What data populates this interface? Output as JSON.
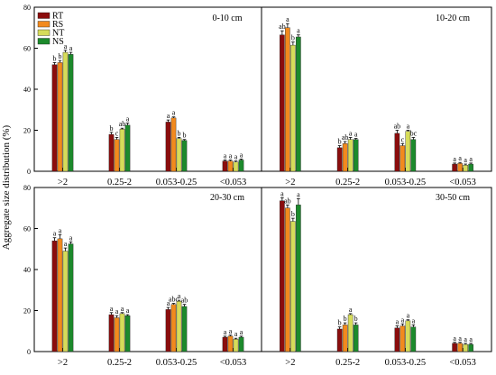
{
  "figure": {
    "ylabel": "Aggregate size distribution (%)"
  },
  "legend": {
    "entries": [
      {
        "name": "RT",
        "color": "#8b0d0d"
      },
      {
        "name": "RS",
        "color": "#f28a1e"
      },
      {
        "name": "NT",
        "color": "#d6dc5a"
      },
      {
        "name": "NS",
        "color": "#1c8a2c"
      }
    ]
  },
  "chart_data": [
    {
      "type": "bar",
      "title": "0-10 cm",
      "categories": [
        ">2",
        "0.25-2",
        "0.053-0.25",
        "<0.053"
      ],
      "ylim": [
        0,
        80
      ],
      "yticks": [
        0,
        20,
        40,
        60,
        80
      ],
      "series": [
        {
          "name": "RT",
          "values": [
            52,
            18,
            24,
            5
          ],
          "errors": [
            1,
            1,
            1,
            0.5
          ],
          "letters": [
            "b",
            "b",
            "a",
            "a"
          ]
        },
        {
          "name": "RS",
          "values": [
            53,
            15.5,
            26,
            5
          ],
          "errors": [
            1,
            1,
            0.5,
            0.5
          ],
          "letters": [
            "b",
            "c",
            "a",
            "a"
          ]
        },
        {
          "name": "NT",
          "values": [
            58,
            20.5,
            16,
            4.5
          ],
          "errors": [
            1,
            0.5,
            0.5,
            0.5
          ],
          "letters": [
            "a",
            "ab",
            "b",
            "a"
          ]
        },
        {
          "name": "NS",
          "values": [
            57,
            22.5,
            15,
            5.5
          ],
          "errors": [
            1,
            1,
            0.5,
            0.5
          ],
          "letters": [
            "a",
            "a",
            "b",
            "a"
          ]
        }
      ]
    },
    {
      "type": "bar",
      "title": "10-20 cm",
      "categories": [
        ">2",
        "0.25-2",
        "0.053-0.25",
        "<0.053"
      ],
      "ylim": [
        0,
        80
      ],
      "yticks": [
        0,
        20,
        40,
        60,
        80
      ],
      "series": [
        {
          "name": "RT",
          "values": [
            66.5,
            11.5,
            18.5,
            3.5
          ],
          "errors": [
            2,
            1,
            1.5,
            0.5
          ],
          "letters": [
            "ab",
            "b",
            "ab",
            "a"
          ]
        },
        {
          "name": "RS",
          "values": [
            70,
            13.5,
            12.5,
            3.8
          ],
          "errors": [
            2,
            1,
            1,
            0.5
          ],
          "letters": [
            "a",
            "ab",
            "c",
            "a"
          ]
        },
        {
          "name": "NT",
          "values": [
            61.5,
            15.5,
            19.5,
            3
          ],
          "errors": [
            1.5,
            1,
            0.5,
            0.5
          ],
          "letters": [
            "b",
            "a",
            "a",
            "a"
          ]
        },
        {
          "name": "NS",
          "values": [
            65.5,
            15.5,
            15.5,
            3.5
          ],
          "errors": [
            1,
            0.5,
            1,
            0.5
          ],
          "letters": [
            "a",
            "a",
            "bc",
            "a"
          ]
        }
      ]
    },
    {
      "type": "bar",
      "title": "20-30 cm",
      "categories": [
        ">2",
        "0.25-2",
        "0.053-0.25",
        "<0.053"
      ],
      "ylim": [
        0,
        80
      ],
      "yticks": [
        0,
        20,
        40,
        60,
        80
      ],
      "series": [
        {
          "name": "RT",
          "values": [
            54,
            18,
            20.5,
            7
          ],
          "errors": [
            1.5,
            1,
            1,
            0.5
          ],
          "letters": [
            "a",
            "a",
            "a",
            "a"
          ]
        },
        {
          "name": "RS",
          "values": [
            55,
            16.5,
            23,
            7.5
          ],
          "errors": [
            2,
            1,
            0.5,
            0.5
          ],
          "letters": [
            "a",
            "a",
            "abc",
            "a"
          ]
        },
        {
          "name": "NT",
          "values": [
            49,
            18.5,
            24.5,
            6
          ],
          "errors": [
            1.5,
            0.5,
            0.5,
            0.5
          ],
          "letters": [
            "a",
            "a",
            "a",
            "a"
          ]
        },
        {
          "name": "NS",
          "values": [
            52.5,
            17.5,
            22,
            7
          ],
          "errors": [
            1,
            0.5,
            1,
            0.5
          ],
          "letters": [
            "a",
            "a",
            "ab",
            "a"
          ]
        }
      ]
    },
    {
      "type": "bar",
      "title": "30-50 cm",
      "categories": [
        ">2",
        "0.25-2",
        "0.053-0.25",
        "<0.053"
      ],
      "ylim": [
        0,
        80
      ],
      "yticks": [
        0,
        20,
        40,
        60,
        80
      ],
      "series": [
        {
          "name": "RT",
          "values": [
            73.5,
            11,
            11.5,
            4
          ],
          "errors": [
            1.5,
            1,
            1,
            0.5
          ],
          "letters": [
            "a",
            "b",
            "a",
            "a"
          ]
        },
        {
          "name": "RS",
          "values": [
            70,
            13,
            12.5,
            4
          ],
          "errors": [
            1.5,
            1,
            1,
            0.5
          ],
          "letters": [
            "ab",
            "b",
            "a",
            "a"
          ]
        },
        {
          "name": "NT",
          "values": [
            63.5,
            18,
            15,
            3.5
          ],
          "errors": [
            1.5,
            0.5,
            0.5,
            0.5
          ],
          "letters": [
            "b",
            "a",
            "a",
            "a"
          ]
        },
        {
          "name": "NS",
          "values": [
            71.5,
            13,
            12,
            3.5
          ],
          "errors": [
            3,
            1,
            1,
            0.5
          ],
          "letters": [
            "a",
            "b",
            "a",
            "a"
          ]
        }
      ]
    }
  ]
}
